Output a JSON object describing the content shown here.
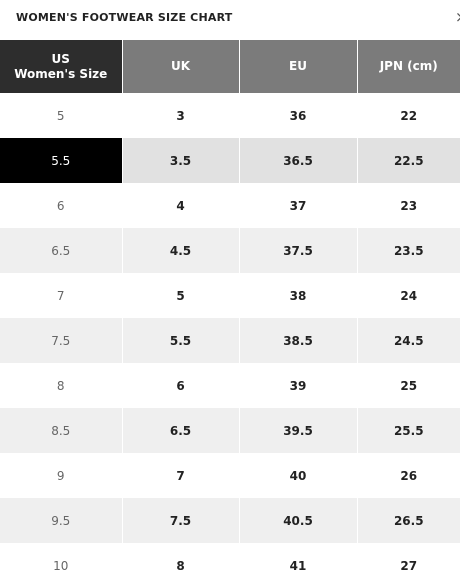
{
  "title": "WOMEN'S FOOTWEAR SIZE CHART",
  "close_icon_glyph": "×",
  "headers": {
    "us_line1": "US",
    "us_line2": "Women's Size",
    "uk": "UK",
    "eu": "EU",
    "jpn": "JPN (cm)"
  },
  "selected_us": "5.5",
  "rows": [
    {
      "us": "5",
      "uk": "3",
      "eu": "36",
      "jpn": "22"
    },
    {
      "us": "5.5",
      "uk": "3.5",
      "eu": "36.5",
      "jpn": "22.5"
    },
    {
      "us": "6",
      "uk": "4",
      "eu": "37",
      "jpn": "23"
    },
    {
      "us": "6.5",
      "uk": "4.5",
      "eu": "37.5",
      "jpn": "23.5"
    },
    {
      "us": "7",
      "uk": "5",
      "eu": "38",
      "jpn": "24"
    },
    {
      "us": "7.5",
      "uk": "5.5",
      "eu": "38.5",
      "jpn": "24.5"
    },
    {
      "us": "8",
      "uk": "6",
      "eu": "39",
      "jpn": "25"
    },
    {
      "us": "8.5",
      "uk": "6.5",
      "eu": "39.5",
      "jpn": "25.5"
    },
    {
      "us": "9",
      "uk": "7",
      "eu": "40",
      "jpn": "26"
    },
    {
      "us": "9.5",
      "uk": "7.5",
      "eu": "40.5",
      "jpn": "26.5"
    },
    {
      "us": "10",
      "uk": "8",
      "eu": "41",
      "jpn": "27"
    }
  ]
}
